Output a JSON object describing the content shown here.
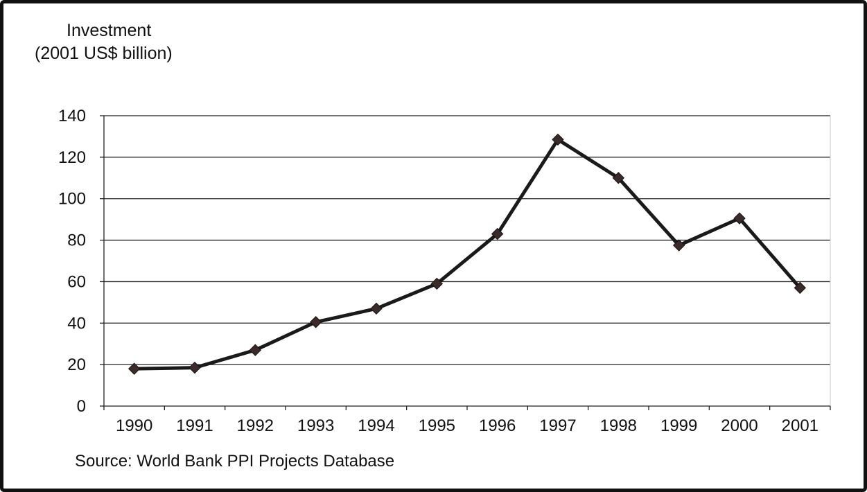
{
  "chart_data": {
    "type": "line",
    "title": "",
    "ylabel_lines": [
      "Investment",
      "(2001 US$ billion)"
    ],
    "xlabel": "",
    "ylim": [
      0,
      140
    ],
    "yticks": [
      0,
      20,
      40,
      60,
      80,
      100,
      120,
      140
    ],
    "grid": true,
    "legend": "none",
    "categories": [
      "1990",
      "1991",
      "1992",
      "1993",
      "1994",
      "1995",
      "1996",
      "1997",
      "1998",
      "1999",
      "2000",
      "2001"
    ],
    "series": [
      {
        "values": [
          18,
          18.5,
          27,
          40.5,
          47,
          59,
          83,
          128.5,
          110,
          77.5,
          90.5,
          57
        ],
        "color": "#1a1a1a",
        "marker_color": "#3a2a2a"
      }
    ],
    "source": "Source: World Bank PPI Projects Database"
  }
}
